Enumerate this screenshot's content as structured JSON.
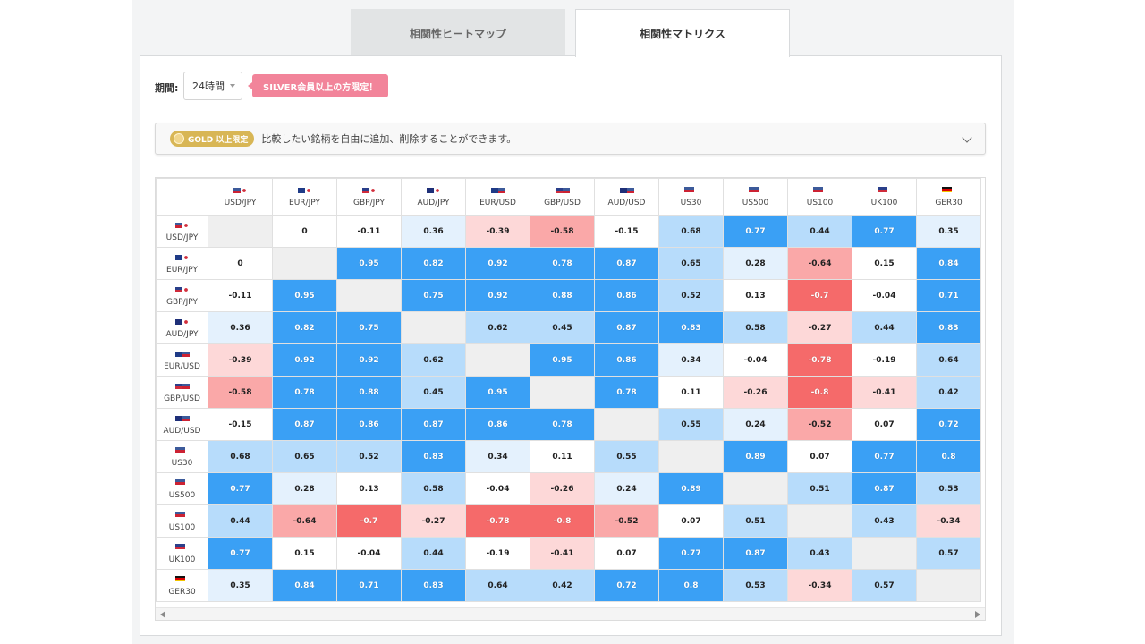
{
  "tabs": {
    "heatmap": "相関性ヒートマップ",
    "matrix": "相関性マトリクス"
  },
  "filter": {
    "period_label": "期間:",
    "period_value": "24時間",
    "silver_badge": "SILVER会員以上の方限定！"
  },
  "gold": {
    "badge": "GOLD 以上限定",
    "text": "比較したい銘柄を自由に追加、削除することができます。"
  },
  "colors": {
    "strong_positive": "#3aa0f5",
    "medium_positive": "#b7dcfb",
    "weak_positive": "#e4f1fd",
    "neutral": "#ffffff",
    "weak_negative": "#fdd8d8",
    "medium_negative": "#faa8a8",
    "strong_negative": "#f56a6a",
    "diagonal": "#efefef"
  },
  "matrix": {
    "symbols": [
      "USD/JPY",
      "EUR/JPY",
      "GBP/JPY",
      "AUD/JPY",
      "EUR/USD",
      "GBP/USD",
      "AUD/USD",
      "US30",
      "US500",
      "US100",
      "UK100",
      "GER30"
    ],
    "flags": [
      "us-jp",
      "eu-jp",
      "gb-jp",
      "au-jp",
      "eu-us",
      "gb-us",
      "au-us",
      "us",
      "us",
      "us",
      "gb",
      "de"
    ],
    "values": [
      [
        null,
        "0",
        "-0.11",
        "0.36",
        "-0.39",
        "-0.58",
        "-0.15",
        "0.68",
        "0.77",
        "0.44",
        "0.77",
        "0.35"
      ],
      [
        "0",
        null,
        "0.95",
        "0.82",
        "0.92",
        "0.78",
        "0.87",
        "0.65",
        "0.28",
        "-0.64",
        "0.15",
        "0.84"
      ],
      [
        "-0.11",
        "0.95",
        null,
        "0.75",
        "0.92",
        "0.88",
        "0.86",
        "0.52",
        "0.13",
        "-0.7",
        "-0.04",
        "0.71"
      ],
      [
        "0.36",
        "0.82",
        "0.75",
        null,
        "0.62",
        "0.45",
        "0.87",
        "0.83",
        "0.58",
        "-0.27",
        "0.44",
        "0.83"
      ],
      [
        "-0.39",
        "0.92",
        "0.92",
        "0.62",
        null,
        "0.95",
        "0.86",
        "0.34",
        "-0.04",
        "-0.78",
        "-0.19",
        "0.64"
      ],
      [
        "-0.58",
        "0.78",
        "0.88",
        "0.45",
        "0.95",
        null,
        "0.78",
        "0.11",
        "-0.26",
        "-0.8",
        "-0.41",
        "0.42"
      ],
      [
        "-0.15",
        "0.87",
        "0.86",
        "0.87",
        "0.86",
        "0.78",
        null,
        "0.55",
        "0.24",
        "-0.52",
        "0.07",
        "0.72"
      ],
      [
        "0.68",
        "0.65",
        "0.52",
        "0.83",
        "0.34",
        "0.11",
        "0.55",
        null,
        "0.89",
        "0.07",
        "0.77",
        "0.8"
      ],
      [
        "0.77",
        "0.28",
        "0.13",
        "0.58",
        "-0.04",
        "-0.26",
        "0.24",
        "0.89",
        null,
        "0.51",
        "0.87",
        "0.53"
      ],
      [
        "0.44",
        "-0.64",
        "-0.7",
        "-0.27",
        "-0.78",
        "-0.8",
        "-0.52",
        "0.07",
        "0.51",
        null,
        "0.43",
        "-0.34"
      ],
      [
        "0.77",
        "0.15",
        "-0.04",
        "0.44",
        "-0.19",
        "-0.41",
        "0.07",
        "0.77",
        "0.87",
        "0.43",
        null,
        "0.57"
      ],
      [
        "0.35",
        "0.84",
        "0.71",
        "0.83",
        "0.64",
        "0.42",
        "0.72",
        "0.8",
        "0.53",
        "-0.34",
        "0.57",
        null
      ]
    ]
  }
}
